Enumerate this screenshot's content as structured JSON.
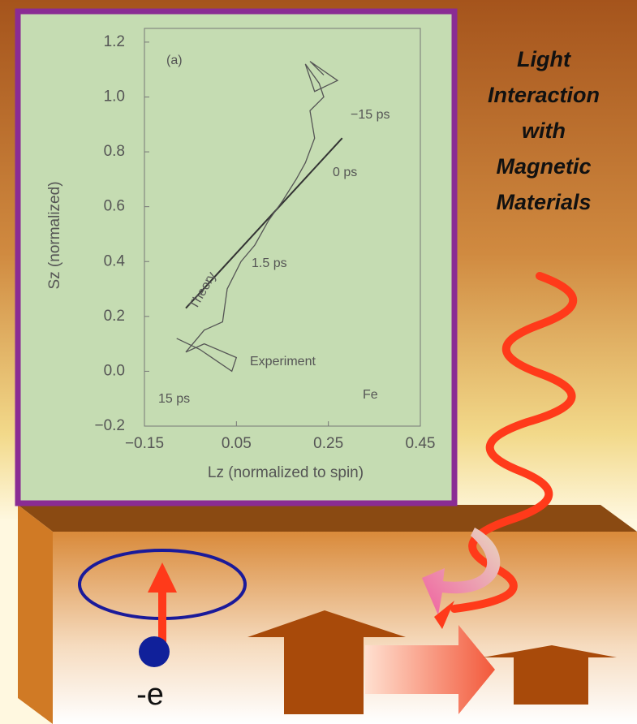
{
  "slide": {
    "title_lines": [
      "Light",
      "Interaction",
      "with",
      "Magnetic",
      "Materials"
    ],
    "electron_label": "-e"
  },
  "chart_data": {
    "type": "line",
    "x_label": "Lz (normalized to spin)",
    "y_label": "Sz (normalized)",
    "annotations": [
      "(a)",
      "−15 ps",
      "0 ps",
      "1.5 ps",
      "15 ps",
      "Fe"
    ],
    "xlim": [
      -0.15,
      0.45
    ],
    "xticks": [
      {
        "value": -0.15,
        "label": "−0.15"
      },
      0.05,
      0.25,
      0.45
    ],
    "ylim": [
      -0.2,
      1.25
    ],
    "yticks": [
      {
        "value": -0.2,
        "label": "−0.2"
      },
      {
        "value": 0,
        "label": "0.0"
      },
      0.2,
      0.4,
      0.6,
      0.8,
      {
        "value": 1,
        "label": "1.0"
      },
      1.2
    ],
    "series": [
      {
        "name": "Theory",
        "color": "#333333",
        "x": [
          -0.06,
          0.28
        ],
        "y": [
          0.23,
          0.85
        ]
      },
      {
        "name": "Experiment",
        "color": "#555555",
        "x": [
          -0.08,
          -0.03,
          0.04,
          0.05,
          -0.02,
          -0.06,
          -0.02,
          0.02,
          0.03,
          0.06,
          0.09,
          0.12,
          0.15,
          0.18,
          0.2,
          0.22,
          0.21,
          0.24,
          0.23,
          0.2,
          0.22,
          0.27,
          0.21,
          0.24
        ],
        "y": [
          0.12,
          0.08,
          0.0,
          0.05,
          0.1,
          0.07,
          0.15,
          0.18,
          0.3,
          0.4,
          0.46,
          0.55,
          0.62,
          0.7,
          0.76,
          0.85,
          0.95,
          1.0,
          1.05,
          1.12,
          1.02,
          1.06,
          1.13,
          1.08
        ]
      }
    ]
  }
}
